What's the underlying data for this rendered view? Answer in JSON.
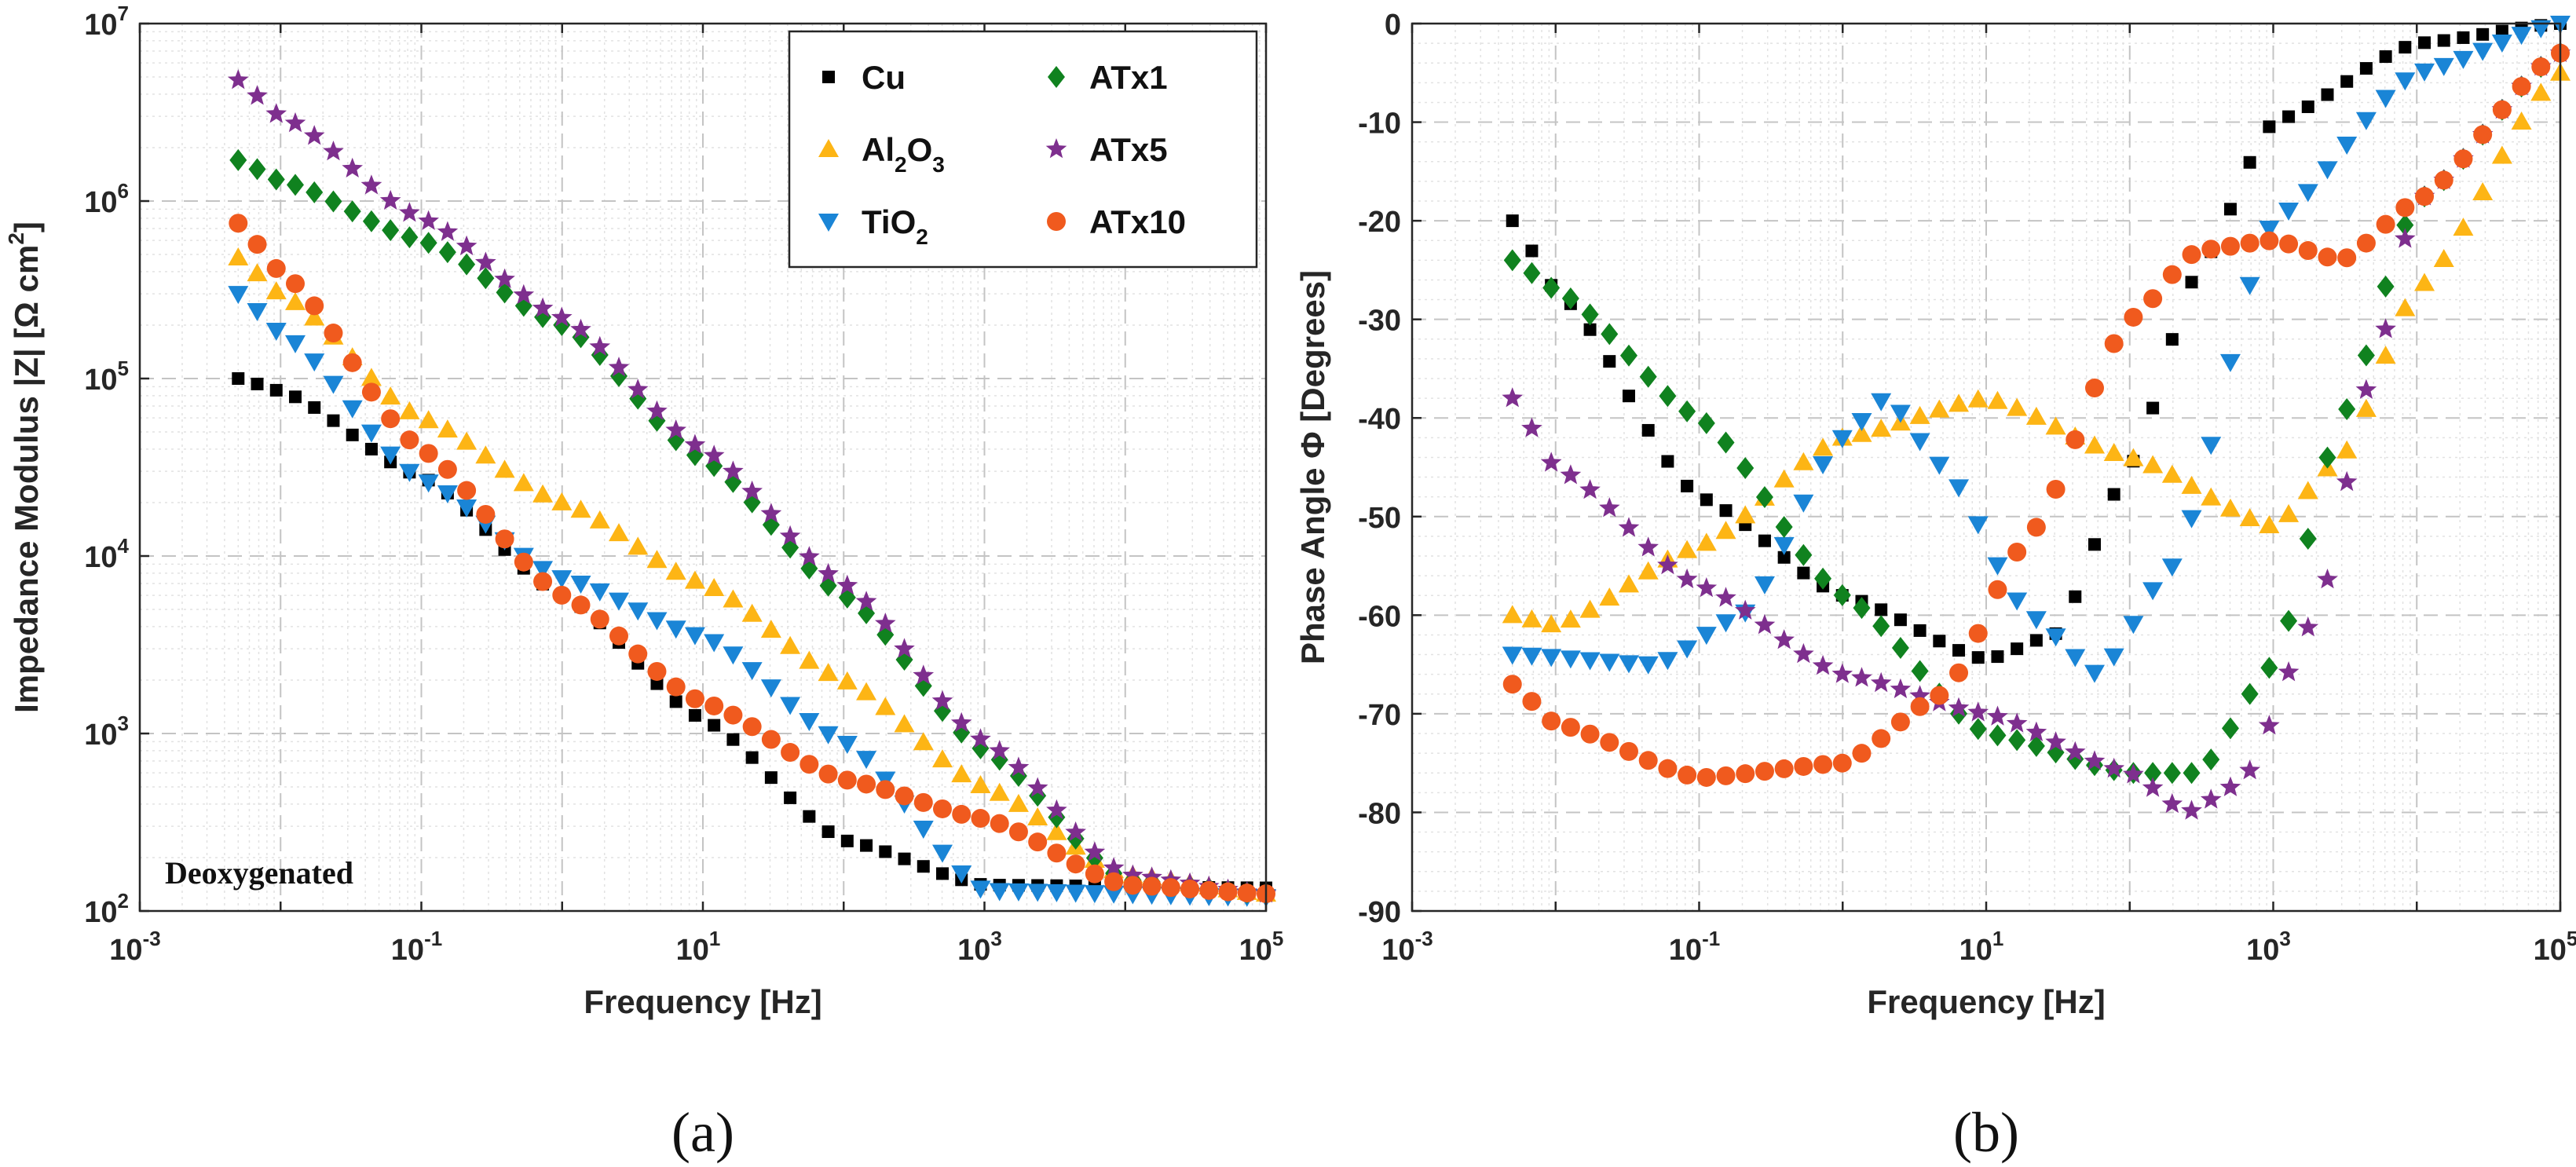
{
  "chart_data": [
    {
      "type": "scatter",
      "panel": "a",
      "caption": "(a)",
      "xlabel": "Frequency [Hz]",
      "ylabel": "Impedance Modulus |Z| [Ω cm2]",
      "ylabel_parts": {
        "main": "Impedance Modulus |Z| [Ω cm",
        "sup": "2",
        "close": "]"
      },
      "xscale": "log",
      "yscale": "log",
      "xlim": [
        0.001,
        100000
      ],
      "ylim": [
        100,
        10000000
      ],
      "xticks": [
        {
          "base": "10",
          "exp": "-3"
        },
        {
          "base": "10",
          "exp": "-1"
        },
        {
          "base": "10",
          "exp": "1"
        },
        {
          "base": "10",
          "exp": "3"
        },
        {
          "base": "10",
          "exp": "5"
        }
      ],
      "yticks": [
        {
          "base": "10",
          "exp": "2"
        },
        {
          "base": "10",
          "exp": "3"
        },
        {
          "base": "10",
          "exp": "4"
        },
        {
          "base": "10",
          "exp": "5"
        },
        {
          "base": "10",
          "exp": "6"
        },
        {
          "base": "10",
          "exp": "7"
        }
      ],
      "grid": true,
      "legend_position": "top-right",
      "annotation": "Deoxygenated",
      "series": [
        {
          "name": "Cu",
          "legend_parts": [
            [
              "Cu",
              ""
            ]
          ],
          "color": "#000000",
          "marker": "square",
          "knots": [
            [
              0.005,
              100000
            ],
            [
              0.01,
              85000
            ],
            [
              0.1,
              28000
            ],
            [
              1,
              6000
            ],
            [
              10,
              1200
            ],
            [
              100,
              250
            ],
            [
              1000,
              140
            ],
            [
              100000,
              135
            ]
          ]
        },
        {
          "name": "Al2O3",
          "legend_parts": [
            [
              "Al",
              ""
            ],
            [
              "2",
              "sub"
            ],
            [
              "O",
              ""
            ],
            [
              "3",
              "sub"
            ]
          ],
          "color": "#FDB515",
          "marker": "triangle-up",
          "knots": [
            [
              0.005,
              480000
            ],
            [
              0.01,
              300000
            ],
            [
              0.1,
              60000
            ],
            [
              1,
              20000
            ],
            [
              10,
              7000
            ],
            [
              100,
              2000
            ],
            [
              1000,
              500
            ],
            [
              10000,
              160
            ],
            [
              100000,
              125
            ]
          ]
        },
        {
          "name": "TiO2",
          "legend_parts": [
            [
              "TiO",
              ""
            ],
            [
              "2",
              "sub"
            ]
          ],
          "color": "#1A85D6",
          "marker": "triangle-down",
          "knots": [
            [
              0.005,
              300000
            ],
            [
              0.01,
              180000
            ],
            [
              0.1,
              27000
            ],
            [
              1,
              7500
            ],
            [
              10,
              3500
            ],
            [
              100,
              900
            ],
            [
              1000,
              130
            ],
            [
              100000,
              120
            ]
          ]
        },
        {
          "name": "ATx1",
          "legend_parts": [
            [
              "ATx1",
              ""
            ]
          ],
          "color": "#10821F",
          "marker": "diamond",
          "knots": [
            [
              0.005,
              1700000
            ],
            [
              0.01,
              1300000
            ],
            [
              0.1,
              600000
            ],
            [
              1,
              200000
            ],
            [
              10,
              35000
            ],
            [
              100,
              6000
            ],
            [
              1000,
              800
            ],
            [
              10000,
              150
            ],
            [
              100000,
              125
            ]
          ]
        },
        {
          "name": "ATx5",
          "legend_parts": [
            [
              "ATx5",
              ""
            ]
          ],
          "color": "#7E2F8E",
          "marker": "star",
          "knots": [
            [
              0.005,
              4800000
            ],
            [
              0.01,
              3000000
            ],
            [
              0.1,
              800000
            ],
            [
              1,
              220000
            ],
            [
              10,
              40000
            ],
            [
              100,
              7000
            ],
            [
              1000,
              900
            ],
            [
              10000,
              160
            ],
            [
              100000,
              125
            ]
          ]
        },
        {
          "name": "ATx10",
          "legend_parts": [
            [
              "ATx10",
              ""
            ]
          ],
          "color": "#F05A1E",
          "marker": "circle",
          "knots": [
            [
              0.005,
              750000
            ],
            [
              0.01,
              400000
            ],
            [
              0.1,
              40000
            ],
            [
              1,
              6000
            ],
            [
              10,
              1500
            ],
            [
              100,
              550
            ],
            [
              1000,
              330
            ],
            [
              10000,
              140
            ],
            [
              100000,
              125
            ]
          ]
        }
      ]
    },
    {
      "type": "scatter",
      "panel": "b",
      "caption": "(b)",
      "xlabel": "Frequency [Hz]",
      "ylabel": "Phase Angle Φ [Degrees]",
      "xscale": "log",
      "yscale": "linear",
      "xlim": [
        0.001,
        100000
      ],
      "ylim": [
        -90,
        0
      ],
      "xticks": [
        {
          "base": "10",
          "exp": "-3"
        },
        {
          "base": "10",
          "exp": "-1"
        },
        {
          "base": "10",
          "exp": "1"
        },
        {
          "base": "10",
          "exp": "3"
        },
        {
          "base": "10",
          "exp": "5"
        }
      ],
      "yticks": [
        "0",
        "-10",
        "-20",
        "-30",
        "-40",
        "-50",
        "-60",
        "-70",
        "-80",
        "-90"
      ],
      "grid": true,
      "series": [
        {
          "name": "Cu",
          "color": "#000000",
          "marker": "square",
          "knots": [
            [
              0.005,
              -20
            ],
            [
              0.01,
              -27
            ],
            [
              0.1,
              -48
            ],
            [
              1,
              -58
            ],
            [
              10,
              -64.5
            ],
            [
              30,
              -62
            ],
            [
              100,
              -45
            ],
            [
              300,
              -25
            ],
            [
              1000,
              -10
            ],
            [
              10000,
              -2
            ],
            [
              100000,
              0
            ]
          ]
        },
        {
          "name": "Al2O3",
          "color": "#FDB515",
          "marker": "triangle-up",
          "knots": [
            [
              0.005,
              -60
            ],
            [
              0.01,
              -61
            ],
            [
              0.1,
              -53
            ],
            [
              1,
              -42
            ],
            [
              10,
              -38
            ],
            [
              100,
              -44
            ],
            [
              1000,
              -51
            ],
            [
              3000,
              -44
            ],
            [
              10000,
              -27
            ],
            [
              100000,
              -5
            ]
          ]
        },
        {
          "name": "TiO2",
          "color": "#1A85D6",
          "marker": "triangle-down",
          "knots": [
            [
              0.005,
              -64
            ],
            [
              0.05,
              -65
            ],
            [
              0.2,
              -60
            ],
            [
              1,
              -42
            ],
            [
              2,
              -38
            ],
            [
              5,
              -45
            ],
            [
              20,
              -60
            ],
            [
              60,
              -66
            ],
            [
              200,
              -55
            ],
            [
              1000,
              -20
            ],
            [
              10000,
              -5
            ],
            [
              100000,
              0
            ]
          ]
        },
        {
          "name": "ATx1",
          "color": "#10821F",
          "marker": "diamond",
          "knots": [
            [
              0.005,
              -24
            ],
            [
              0.01,
              -27
            ],
            [
              0.1,
              -40
            ],
            [
              1,
              -58
            ],
            [
              10,
              -72
            ],
            [
              100,
              -76
            ],
            [
              300,
              -76
            ],
            [
              1000,
              -65
            ],
            [
              3000,
              -40
            ],
            [
              10000,
              -18
            ],
            [
              100000,
              -3
            ]
          ]
        },
        {
          "name": "ATx5",
          "color": "#7E2F8E",
          "marker": "star",
          "knots": [
            [
              0.005,
              -38
            ],
            [
              0.01,
              -45
            ],
            [
              0.1,
              -57
            ],
            [
              1,
              -66
            ],
            [
              10,
              -70
            ],
            [
              100,
              -76
            ],
            [
              250,
              -80
            ],
            [
              600,
              -77
            ],
            [
              2000,
              -60
            ],
            [
              5000,
              -35
            ],
            [
              10000,
              -18
            ],
            [
              100000,
              -3
            ]
          ]
        },
        {
          "name": "ATx10",
          "color": "#F05A1E",
          "marker": "circle",
          "knots": [
            [
              0.005,
              -67
            ],
            [
              0.01,
              -71
            ],
            [
              0.1,
              -76.5
            ],
            [
              1,
              -75
            ],
            [
              5,
              -68
            ],
            [
              20,
              -52
            ],
            [
              100,
              -30
            ],
            [
              300,
              -23
            ],
            [
              1000,
              -22
            ],
            [
              3000,
              -24
            ],
            [
              10000,
              -18
            ],
            [
              100000,
              -3
            ]
          ]
        }
      ]
    }
  ]
}
